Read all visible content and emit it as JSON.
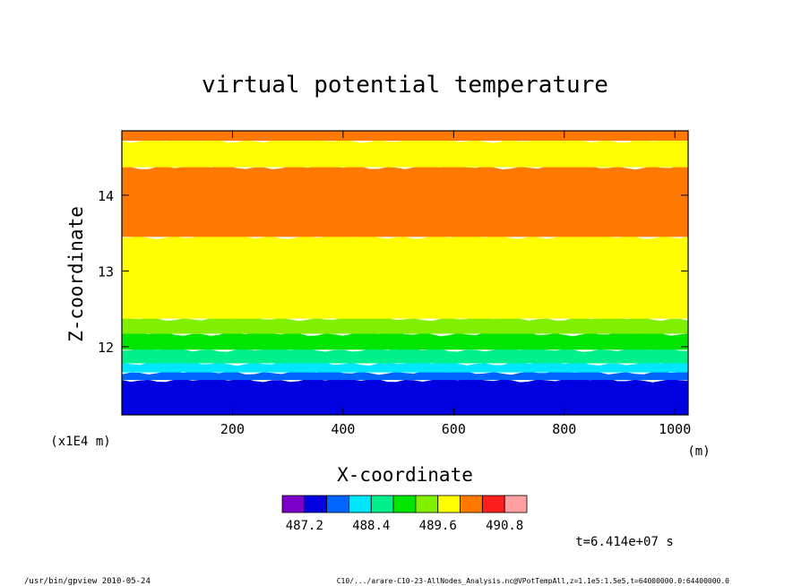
{
  "chart_data": {
    "type": "heatmap",
    "title": "virtual potential temperature",
    "xlabel": "X-coordinate",
    "ylabel": "Z-coordinate",
    "x_unit": "(m)",
    "y_unit": "(x1E4 m)",
    "xlim": [
      0,
      1024
    ],
    "ylim": [
      11.1,
      14.85
    ],
    "x_ticks": [
      200,
      400,
      600,
      800,
      1000
    ],
    "y_ticks": [
      12,
      13,
      14
    ],
    "colorbar": {
      "colors": [
        "#7a00c8",
        "#0000e0",
        "#0064ff",
        "#00e6ff",
        "#00f08c",
        "#00e600",
        "#80f000",
        "#ffff00",
        "#ff7800",
        "#ff1e1e",
        "#ffa0a0"
      ],
      "tick_labels": [
        "487.2",
        "488.4",
        "489.6",
        "490.8"
      ]
    },
    "bands": [
      {
        "color": "#0000e0",
        "z_bottom": 11.1,
        "z_top": 11.56
      },
      {
        "color": "#0064ff",
        "z_bottom": 11.56,
        "z_top": 11.66
      },
      {
        "color": "#00e6ff",
        "z_bottom": 11.66,
        "z_top": 11.78
      },
      {
        "color": "#00f08c",
        "z_bottom": 11.78,
        "z_top": 11.96
      },
      {
        "color": "#00e600",
        "z_bottom": 11.96,
        "z_top": 12.17
      },
      {
        "color": "#80f000",
        "z_bottom": 12.17,
        "z_top": 12.37
      },
      {
        "color": "#ffff00",
        "z_bottom": 12.37,
        "z_top": 13.45
      },
      {
        "color": "#ff7800",
        "z_bottom": 13.45,
        "z_top": 14.37
      },
      {
        "color": "#ffff00",
        "z_bottom": 14.37,
        "z_top": 14.72
      },
      {
        "color": "#ff7800",
        "z_bottom": 14.72,
        "z_top": 14.85
      }
    ],
    "time_label": "t=6.414e+07 s",
    "footer_left": "/usr/bin/gpview   2010-05-24",
    "footer_right": "C10/.../arare-C10-23-AllNodes_Analysis.nc@VPotTempAll,z=1.1e5:1.5e5,t=64000000.0:64400000.0"
  }
}
